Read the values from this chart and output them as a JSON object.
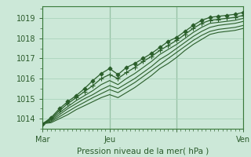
{
  "xlabel": "Pression niveau de la mer( hPa )",
  "bg_color": "#cce8d8",
  "grid_major_color": "#aad4bc",
  "grid_minor_color": "#b8dcc8",
  "line_color": "#2a5e2a",
  "xlim": [
    0,
    72
  ],
  "ylim": [
    1013.5,
    1019.6
  ],
  "yticks": [
    1014,
    1015,
    1016,
    1017,
    1018,
    1019
  ],
  "xtick_positions": [
    0,
    24,
    48,
    72
  ],
  "xtick_labels": [
    "Mar",
    "Jeu",
    "",
    "Ven"
  ],
  "series": [
    [
      0.0,
      1013.75,
      3.0,
      1014.05,
      6.0,
      1014.5,
      9.0,
      1014.85,
      12.0,
      1015.15,
      15.0,
      1015.5,
      18.0,
      1015.9,
      21.0,
      1016.25,
      24.0,
      1016.5,
      27.0,
      1016.2,
      30.0,
      1016.55,
      33.0,
      1016.75,
      36.0,
      1017.0,
      39.0,
      1017.25,
      42.0,
      1017.55,
      45.0,
      1017.85,
      48.0,
      1018.05,
      51.0,
      1018.35,
      54.0,
      1018.65,
      57.0,
      1018.9,
      60.0,
      1019.05,
      63.0,
      1019.1,
      66.0,
      1019.15,
      69.0,
      1019.2,
      72.0,
      1019.3
    ],
    [
      0.0,
      1013.75,
      3.0,
      1014.0,
      6.0,
      1014.4,
      9.0,
      1014.75,
      12.0,
      1015.05,
      15.0,
      1015.35,
      18.0,
      1015.65,
      21.0,
      1016.0,
      24.0,
      1016.2,
      27.0,
      1016.0,
      30.0,
      1016.3,
      33.0,
      1016.55,
      36.0,
      1016.85,
      39.0,
      1017.1,
      42.0,
      1017.4,
      45.0,
      1017.65,
      48.0,
      1017.9,
      51.0,
      1018.2,
      54.0,
      1018.5,
      57.0,
      1018.75,
      60.0,
      1018.9,
      63.0,
      1018.95,
      66.0,
      1019.0,
      69.0,
      1019.05,
      72.0,
      1019.15
    ],
    [
      0.0,
      1013.75,
      3.0,
      1013.95,
      6.0,
      1014.3,
      9.0,
      1014.6,
      12.0,
      1014.9,
      15.0,
      1015.15,
      18.0,
      1015.4,
      21.0,
      1015.7,
      24.0,
      1015.9,
      27.0,
      1015.7,
      30.0,
      1016.0,
      33.0,
      1016.25,
      36.0,
      1016.55,
      39.0,
      1016.85,
      42.0,
      1017.2,
      45.0,
      1017.45,
      48.0,
      1017.7,
      51.0,
      1018.0,
      54.0,
      1018.3,
      57.0,
      1018.55,
      60.0,
      1018.75,
      63.0,
      1018.8,
      66.0,
      1018.85,
      69.0,
      1018.9,
      72.0,
      1019.0
    ],
    [
      0.0,
      1013.75,
      3.0,
      1013.9,
      6.0,
      1014.2,
      9.0,
      1014.5,
      12.0,
      1014.75,
      15.0,
      1015.0,
      18.0,
      1015.2,
      21.0,
      1015.45,
      24.0,
      1015.65,
      27.0,
      1015.5,
      30.0,
      1015.75,
      33.0,
      1016.0,
      36.0,
      1016.3,
      39.0,
      1016.6,
      42.0,
      1016.95,
      45.0,
      1017.2,
      48.0,
      1017.5,
      51.0,
      1017.8,
      54.0,
      1018.1,
      57.0,
      1018.35,
      60.0,
      1018.55,
      63.0,
      1018.65,
      66.0,
      1018.7,
      69.0,
      1018.75,
      72.0,
      1018.85
    ],
    [
      0.0,
      1013.75,
      3.0,
      1013.85,
      6.0,
      1014.1,
      9.0,
      1014.35,
      12.0,
      1014.6,
      15.0,
      1014.82,
      18.0,
      1015.05,
      21.0,
      1015.25,
      24.0,
      1015.45,
      27.0,
      1015.3,
      30.0,
      1015.55,
      33.0,
      1015.8,
      36.0,
      1016.1,
      39.0,
      1016.4,
      42.0,
      1016.7,
      45.0,
      1017.0,
      48.0,
      1017.3,
      51.0,
      1017.6,
      54.0,
      1017.9,
      57.0,
      1018.15,
      60.0,
      1018.35,
      63.0,
      1018.45,
      66.0,
      1018.5,
      69.0,
      1018.55,
      72.0,
      1018.65
    ],
    [
      0.0,
      1013.75,
      3.0,
      1013.8,
      6.0,
      1014.0,
      9.0,
      1014.2,
      12.0,
      1014.45,
      15.0,
      1014.65,
      18.0,
      1014.85,
      21.0,
      1015.05,
      24.0,
      1015.2,
      27.0,
      1015.05,
      30.0,
      1015.3,
      33.0,
      1015.55,
      36.0,
      1015.85,
      39.0,
      1016.15,
      42.0,
      1016.5,
      45.0,
      1016.75,
      48.0,
      1017.05,
      51.0,
      1017.4,
      54.0,
      1017.7,
      57.0,
      1017.95,
      60.0,
      1018.2,
      63.0,
      1018.3,
      66.0,
      1018.35,
      69.0,
      1018.4,
      72.0,
      1018.5
    ]
  ],
  "marker_series_indices": [
    0,
    1
  ],
  "no_marker_series": [
    2,
    3,
    4,
    5
  ]
}
